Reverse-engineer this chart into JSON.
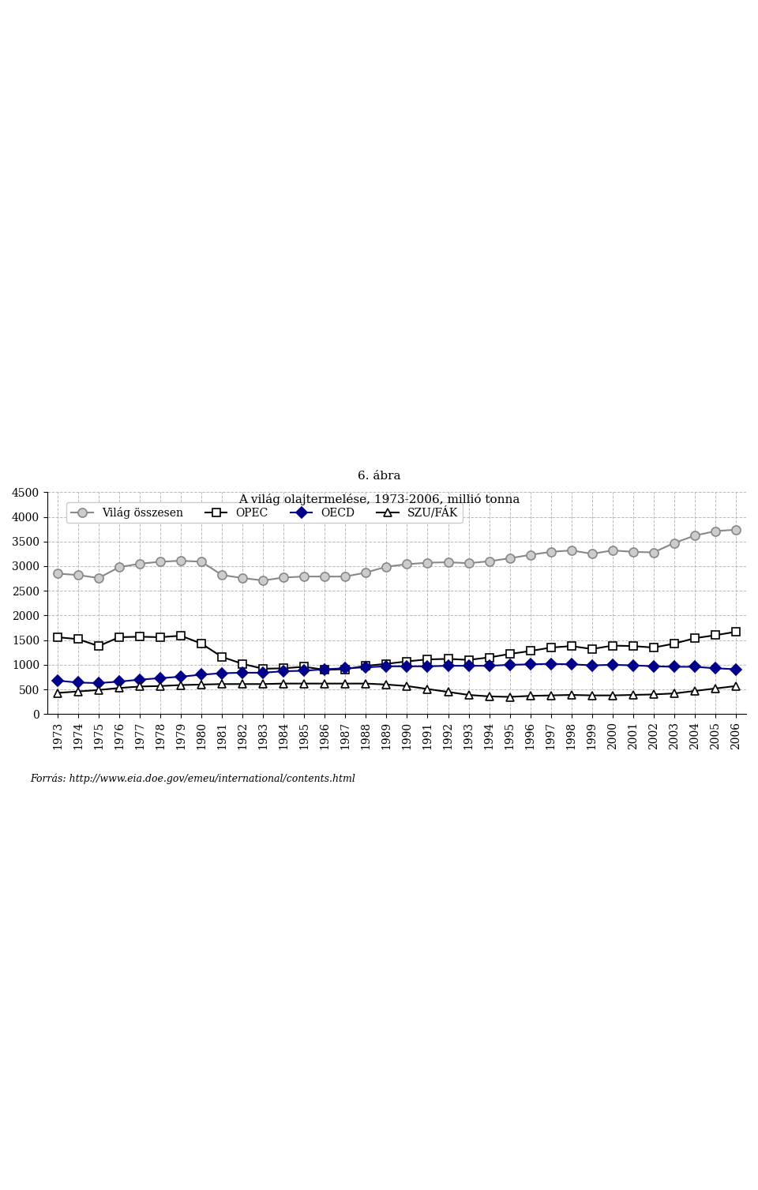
{
  "title_line1": "6. ábra",
  "title_line2": "A világ olajtermelése, 1973-2006, millió tonna",
  "years": [
    1973,
    1974,
    1975,
    1976,
    1977,
    1978,
    1979,
    1980,
    1981,
    1982,
    1983,
    1984,
    1985,
    1986,
    1987,
    1988,
    1989,
    1990,
    1991,
    1992,
    1993,
    1994,
    1995,
    1996,
    1997,
    1998,
    1999,
    2000,
    2001,
    2002,
    2003,
    2004,
    2005,
    2006
  ],
  "OECD": [
    680,
    640,
    630,
    660,
    700,
    730,
    760,
    800,
    830,
    840,
    840,
    870,
    880,
    910,
    930,
    950,
    970,
    970,
    970,
    980,
    980,
    980,
    1000,
    1010,
    1020,
    1010,
    990,
    1000,
    990,
    970,
    960,
    960,
    930,
    910
  ],
  "OPEC": [
    1560,
    1520,
    1380,
    1560,
    1570,
    1560,
    1590,
    1430,
    1160,
    1020,
    920,
    930,
    960,
    900,
    910,
    980,
    1020,
    1070,
    1110,
    1120,
    1100,
    1150,
    1220,
    1280,
    1350,
    1380,
    1320,
    1390,
    1380,
    1350,
    1430,
    1540,
    1600,
    1670
  ],
  "SZU_FAK": [
    430,
    460,
    490,
    530,
    560,
    570,
    590,
    600,
    610,
    610,
    610,
    620,
    620,
    620,
    620,
    620,
    600,
    570,
    510,
    450,
    390,
    360,
    350,
    370,
    380,
    390,
    380,
    380,
    390,
    400,
    420,
    470,
    520,
    570
  ],
  "Vilag": [
    2850,
    2820,
    2760,
    2980,
    3050,
    3090,
    3110,
    3090,
    2820,
    2760,
    2710,
    2770,
    2790,
    2790,
    2790,
    2870,
    2990,
    3040,
    3070,
    3080,
    3060,
    3100,
    3160,
    3230,
    3290,
    3320,
    3250,
    3320,
    3290,
    3280,
    3470,
    3620,
    3710,
    3740
  ],
  "ylim": [
    0,
    4500
  ],
  "yticks": [
    0,
    500,
    1000,
    1500,
    2000,
    2500,
    3000,
    3500,
    4000,
    4500
  ],
  "source_text": "Forrás: http://www.eia.doe.gov/emeu/international/contents.html",
  "bg_color": "#ffffff",
  "grid_color": "#aaaaaa",
  "OECD_color": "#00008B",
  "OPEC_color": "#000000",
  "SZU_color": "#000000",
  "Vilag_color": "#aaaaaa"
}
